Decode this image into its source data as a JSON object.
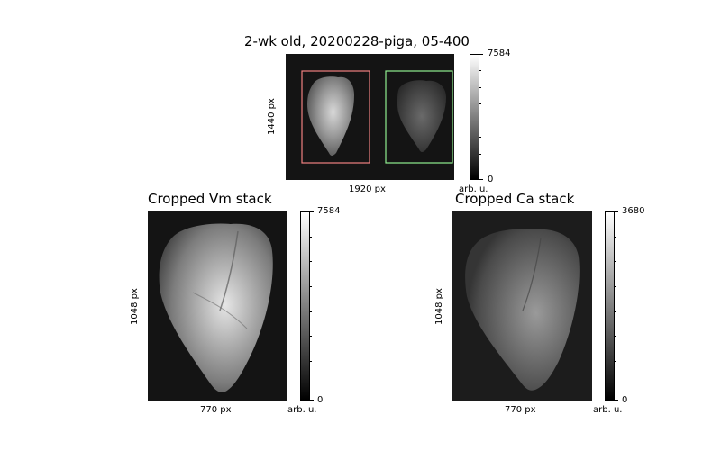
{
  "top_panel": {
    "title": "2-wk old, 20200228-piga, 05-400",
    "xlabel": "1920 px",
    "ylabel": "1440 px",
    "colorbar": {
      "max_label": "7584",
      "min_label": "0",
      "unit_label": "arb. u."
    },
    "roi_colors": {
      "vm": "#f08080",
      "ca": "#90ee90"
    }
  },
  "vm_panel": {
    "title": "Cropped Vm stack",
    "xlabel": "770 px",
    "ylabel": "1048 px",
    "colorbar": {
      "max_label": "7584",
      "min_label": "0",
      "unit_label": "arb. u."
    }
  },
  "ca_panel": {
    "title": "Cropped Ca stack",
    "xlabel": "770 px",
    "ylabel": "1048 px",
    "colorbar": {
      "max_label": "3680",
      "min_label": "0",
      "unit_label": "arb. u."
    }
  }
}
